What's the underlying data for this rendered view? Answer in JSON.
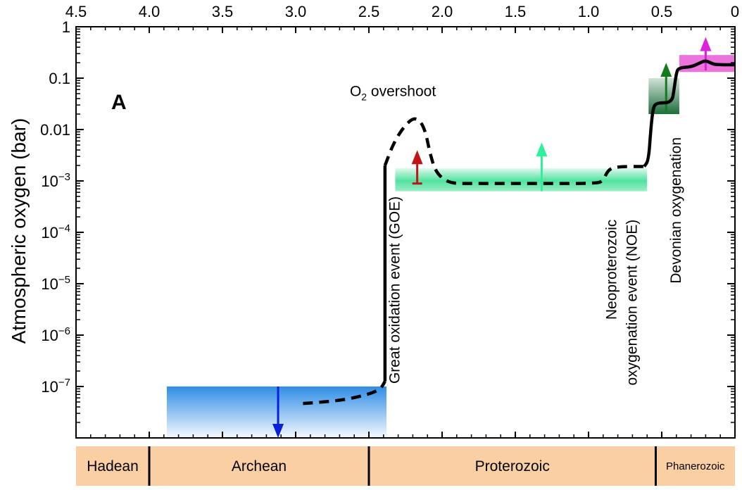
{
  "chart_data": {
    "type": "line",
    "title": "",
    "panel_label": "A",
    "xlabel": "",
    "ylabel": "Atmospheric oxygen (bar)",
    "x_axis_position": "top",
    "xlim": [
      4.5,
      0
    ],
    "ylim_log10": [
      -8,
      0
    ],
    "y_scale": "log",
    "x_ticks": [
      4.5,
      4.0,
      3.5,
      3.0,
      2.5,
      2.0,
      1.5,
      1.0,
      0.5,
      0
    ],
    "x_tick_labels": [
      "4.5",
      "4.0",
      "3.5",
      "3.0",
      "2.5",
      "2.0",
      "1.5",
      "1.0",
      "0.5",
      "0"
    ],
    "y_ticks": [
      {
        "exp": 0,
        "base": "1",
        "sup": ""
      },
      {
        "exp": -1,
        "base": "0.1",
        "sup": ""
      },
      {
        "exp": -2,
        "base": "0.01",
        "sup": ""
      },
      {
        "exp": -3,
        "base": "10",
        "sup": "−3"
      },
      {
        "exp": -4,
        "base": "10",
        "sup": "−4"
      },
      {
        "exp": -5,
        "base": "10",
        "sup": "−5"
      },
      {
        "exp": -6,
        "base": "10",
        "sup": "−6"
      },
      {
        "exp": -7,
        "base": "10",
        "sup": "−7"
      }
    ],
    "grid": false,
    "series": [
      {
        "style": "dashed",
        "points": [
          [
            2.95,
            -7.33
          ],
          [
            2.8,
            -7.3
          ],
          [
            2.65,
            -7.25
          ],
          [
            2.5,
            -7.15
          ],
          [
            2.42,
            -7.05
          ],
          [
            2.39,
            -6.9
          ]
        ]
      },
      {
        "style": "solid",
        "points": [
          [
            2.39,
            -6.9
          ],
          [
            2.39,
            -3.0
          ],
          [
            2.39,
            -2.7
          ]
        ]
      },
      {
        "style": "dashed",
        "points": [
          [
            2.39,
            -2.7
          ],
          [
            2.33,
            -2.25
          ],
          [
            2.25,
            -1.9
          ],
          [
            2.18,
            -1.75
          ],
          [
            2.12,
            -1.95
          ],
          [
            2.08,
            -2.5
          ],
          [
            2.04,
            -2.85
          ],
          [
            1.95,
            -3.05
          ],
          [
            1.8,
            -3.05
          ],
          [
            1.4,
            -3.05
          ],
          [
            0.95,
            -3.05
          ],
          [
            0.9,
            -3.0
          ],
          [
            0.87,
            -2.8
          ],
          [
            0.82,
            -2.72
          ],
          [
            0.62,
            -2.72
          ]
        ]
      },
      {
        "style": "solid",
        "points": [
          [
            0.62,
            -2.72
          ],
          [
            0.59,
            -2.6
          ],
          [
            0.575,
            -2.0
          ],
          [
            0.56,
            -1.6
          ],
          [
            0.54,
            -1.48
          ],
          [
            0.43,
            -1.48
          ],
          [
            0.415,
            -1.2
          ],
          [
            0.4,
            -0.9
          ],
          [
            0.385,
            -0.8
          ],
          [
            0.3,
            -0.78
          ],
          [
            0.25,
            -0.72
          ],
          [
            0.2,
            -0.65
          ],
          [
            0.15,
            -0.73
          ],
          [
            0.1,
            -0.74
          ],
          [
            0.0,
            -0.74
          ]
        ]
      }
    ],
    "bands": [
      {
        "name": "archean-band",
        "x": [
          3.88,
          2.38
        ],
        "y_log10": [
          -7.0,
          -8.0
        ],
        "color": "#2f8de6",
        "fade": "down"
      },
      {
        "name": "proterozoic-band",
        "x": [
          2.32,
          0.6
        ],
        "y_log10": [
          -2.75,
          -3.2
        ],
        "color": "#33dd8f",
        "fade": "both"
      },
      {
        "name": "neoproterozoic-band",
        "x": [
          0.59,
          0.38
        ],
        "y_log10": [
          -1.0,
          -1.7
        ],
        "color": "#1d6e3c",
        "fade": "up"
      },
      {
        "name": "phanerozoic-band",
        "x": [
          0.38,
          0.0
        ],
        "y_log10": [
          -0.55,
          -0.88
        ],
        "color": "#e85ad6",
        "fade": "none"
      }
    ],
    "arrows": [
      {
        "name": "archean-arrow",
        "x": 3.12,
        "from": -7.0,
        "to": -8.0,
        "color": "#0a1fd8",
        "bar_end": false
      },
      {
        "name": "goe-arrow",
        "x": 2.17,
        "from": -3.05,
        "to": -2.4,
        "color": "#c01515",
        "bar_end": true
      },
      {
        "name": "proterozoic-arrow",
        "x": 1.32,
        "from": -3.2,
        "to": -2.25,
        "color": "#2ef09a",
        "bar_end": false
      },
      {
        "name": "noe-arrow",
        "x": 0.47,
        "from": -1.65,
        "to": -0.7,
        "color": "#157a1e",
        "bar_end": false
      },
      {
        "name": "devonian-arrow",
        "x": 0.2,
        "from": -0.85,
        "to": -0.2,
        "color": "#dd22dd",
        "bar_end": false
      }
    ],
    "annotations": [
      {
        "name": "overshoot-label",
        "text": "O",
        "sub": "2",
        "rest": " overshoot",
        "x": 2.63,
        "y_log10": -1.35,
        "rotate": 0
      },
      {
        "name": "goe-label",
        "text": "Great oxidation event (GOE)",
        "x": 2.29,
        "y_log10": -3.3,
        "rotate": -90
      },
      {
        "name": "noe-label-1",
        "text": "Neoproterozoic",
        "x": 0.81,
        "y_log10": -3.75,
        "rotate": -90
      },
      {
        "name": "noe-label-2",
        "text": "oxygenation event  (NOE)",
        "x": 0.67,
        "y_log10": -3.75,
        "rotate": -90
      },
      {
        "name": "devonian-label",
        "text": "Devonian oxygenation",
        "x": 0.37,
        "y_log10": -2.15,
        "rotate": -90
      }
    ],
    "eons": [
      {
        "name": "Hadean",
        "from": 4.5,
        "to": 4.0
      },
      {
        "name": "Archean",
        "from": 4.0,
        "to": 2.5
      },
      {
        "name": "Proterozoic",
        "from": 2.5,
        "to": 0.541
      },
      {
        "name": "Phanerozoic",
        "from": 0.541,
        "to": 0.0,
        "small": true
      }
    ],
    "eon_bar_color": "#f9cfa3"
  }
}
